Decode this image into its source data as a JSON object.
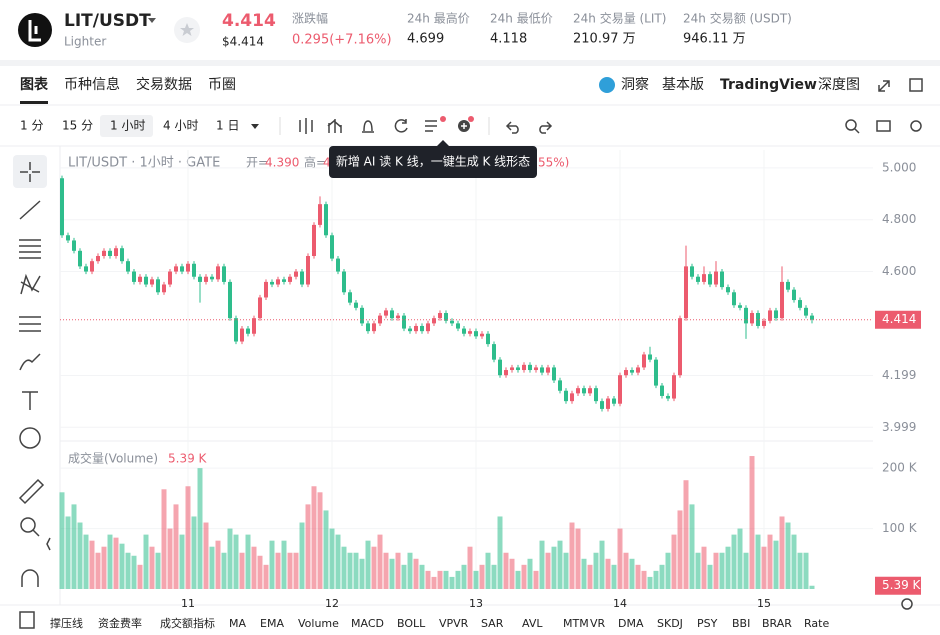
{
  "header": {
    "symbol": "LIT/USDT",
    "name": "Lighter",
    "price": "4.414",
    "price_usd": "$4.414",
    "change_label": "涨跌幅",
    "change": "0.295(+7.16%)",
    "stats": [
      {
        "label": "24h 最高价",
        "value": "4.699"
      },
      {
        "label": "24h 最低价",
        "value": "4.118"
      },
      {
        "label": "24h 交易量 (LIT)",
        "value": "210.97 万"
      },
      {
        "label": "24h 交易额 (USDT)",
        "value": "946.11 万"
      }
    ]
  },
  "tabs": [
    "图表",
    "币种信息",
    "交易数据",
    "币圈"
  ],
  "tabs_right": [
    "洞察",
    "基本版",
    "TradingView",
    "深度图"
  ],
  "intervals": [
    "1 分",
    "15 分",
    "1 小时",
    "4 小时",
    "1 日"
  ],
  "indicators": [
    "撑压线",
    "资金费率",
    "成交额指标",
    "MA",
    "EMA",
    "Volume",
    "MACD",
    "BOLL",
    "VPVR",
    "SAR",
    "AVL",
    "MTM",
    "VR",
    "DMA",
    "SKDJ",
    "PSY",
    "BBI",
    "BRAR",
    "Rate"
  ],
  "chart_data": {
    "type": "candlestick",
    "legend": {
      "symbol": "LIT/USDT · 1小时 · GATE",
      "open_label": "开=",
      "open": "4.390",
      "high_label": "高=",
      "high": "4",
      "tail": "55%)"
    },
    "tooltip": "新增 AI 读 K 线，一键生成 K 线形态",
    "up_color": "#ec5b6e",
    "down_color": "#2ebd8c",
    "ylim": [
      3.95,
      5.069
    ],
    "yticks": [
      {
        "value": 5.0,
        "label": "5.000"
      },
      {
        "value": 4.8,
        "label": "4.800"
      },
      {
        "value": 4.6,
        "label": "4.600"
      },
      {
        "value": 4.199,
        "label": "4.199"
      },
      {
        "value": 3.999,
        "label": "3.999"
      }
    ],
    "last_price": {
      "value": 4.414,
      "label": "4.414"
    },
    "x_ticks": [
      {
        "index": 21,
        "label": "11"
      },
      {
        "index": 45,
        "label": "12"
      },
      {
        "index": 69,
        "label": "13"
      },
      {
        "index": 93,
        "label": "14"
      },
      {
        "index": 117,
        "label": "15"
      }
    ],
    "candles": [
      [
        4.96,
        4.97,
        4.73,
        4.74
      ],
      [
        4.74,
        4.75,
        4.71,
        4.72
      ],
      [
        4.72,
        4.73,
        4.67,
        4.68
      ],
      [
        4.68,
        4.69,
        4.61,
        4.62
      ],
      [
        4.62,
        4.63,
        4.59,
        4.6
      ],
      [
        4.6,
        4.65,
        4.59,
        4.64
      ],
      [
        4.64,
        4.67,
        4.63,
        4.66
      ],
      [
        4.66,
        4.69,
        4.65,
        4.68
      ],
      [
        4.68,
        4.69,
        4.65,
        4.66
      ],
      [
        4.66,
        4.7,
        4.65,
        4.69
      ],
      [
        4.69,
        4.7,
        4.63,
        4.64
      ],
      [
        4.64,
        4.65,
        4.59,
        4.6
      ],
      [
        4.6,
        4.61,
        4.55,
        4.56
      ],
      [
        4.56,
        4.59,
        4.55,
        4.58
      ],
      [
        4.58,
        4.59,
        4.54,
        4.55
      ],
      [
        4.55,
        4.58,
        4.54,
        4.57
      ],
      [
        4.57,
        4.58,
        4.51,
        4.52
      ],
      [
        4.52,
        4.56,
        4.51,
        4.55
      ],
      [
        4.55,
        4.61,
        4.54,
        4.6
      ],
      [
        4.6,
        4.63,
        4.59,
        4.62
      ],
      [
        4.62,
        4.63,
        4.59,
        4.6
      ],
      [
        4.6,
        4.64,
        4.59,
        4.63
      ],
      [
        4.63,
        4.64,
        4.57,
        4.58
      ],
      [
        4.58,
        4.59,
        4.48,
        4.56
      ],
      [
        4.56,
        4.59,
        4.55,
        4.58
      ],
      [
        4.58,
        4.59,
        4.56,
        4.57
      ],
      [
        4.57,
        4.63,
        4.56,
        4.62
      ],
      [
        4.62,
        4.63,
        4.55,
        4.56
      ],
      [
        4.56,
        4.57,
        4.41,
        4.42
      ],
      [
        4.42,
        4.43,
        4.32,
        4.33
      ],
      [
        4.33,
        4.39,
        4.32,
        4.38
      ],
      [
        4.38,
        4.39,
        4.35,
        4.36
      ],
      [
        4.36,
        4.43,
        4.35,
        4.42
      ],
      [
        4.42,
        4.51,
        4.41,
        4.5
      ],
      [
        4.5,
        4.57,
        4.49,
        4.56
      ],
      [
        4.56,
        4.57,
        4.54,
        4.55
      ],
      [
        4.55,
        4.58,
        4.54,
        4.57
      ],
      [
        4.57,
        4.58,
        4.55,
        4.56
      ],
      [
        4.56,
        4.59,
        4.55,
        4.58
      ],
      [
        4.58,
        4.61,
        4.57,
        4.6
      ],
      [
        4.6,
        4.61,
        4.54,
        4.55
      ],
      [
        4.55,
        4.67,
        4.54,
        4.66
      ],
      [
        4.66,
        4.79,
        4.65,
        4.78
      ],
      [
        4.78,
        4.89,
        4.77,
        4.86
      ],
      [
        4.86,
        4.87,
        4.73,
        4.74
      ],
      [
        4.74,
        4.75,
        4.64,
        4.65
      ],
      [
        4.65,
        4.66,
        4.59,
        4.6
      ],
      [
        4.6,
        4.61,
        4.51,
        4.52
      ],
      [
        4.52,
        4.53,
        4.47,
        4.48
      ],
      [
        4.48,
        4.49,
        4.45,
        4.46
      ],
      [
        4.46,
        4.47,
        4.39,
        4.4
      ],
      [
        4.4,
        4.41,
        4.36,
        4.37
      ],
      [
        4.37,
        4.41,
        4.36,
        4.4
      ],
      [
        4.4,
        4.44,
        4.39,
        4.43
      ],
      [
        4.43,
        4.46,
        4.42,
        4.45
      ],
      [
        4.45,
        4.46,
        4.41,
        4.42
      ],
      [
        4.42,
        4.44,
        4.41,
        4.43
      ],
      [
        4.43,
        4.44,
        4.37,
        4.38
      ],
      [
        4.38,
        4.39,
        4.36,
        4.37
      ],
      [
        4.37,
        4.4,
        4.36,
        4.39
      ],
      [
        4.39,
        4.4,
        4.36,
        4.37
      ],
      [
        4.37,
        4.41,
        4.36,
        4.4
      ],
      [
        4.4,
        4.43,
        4.39,
        4.42
      ],
      [
        4.42,
        4.45,
        4.41,
        4.44
      ],
      [
        4.44,
        4.45,
        4.4,
        4.41
      ],
      [
        4.41,
        4.42,
        4.39,
        4.4
      ],
      [
        4.4,
        4.41,
        4.37,
        4.38
      ],
      [
        4.38,
        4.39,
        4.35,
        4.36
      ],
      [
        4.36,
        4.38,
        4.35,
        4.37
      ],
      [
        4.37,
        4.38,
        4.34,
        4.35
      ],
      [
        4.35,
        4.37,
        4.34,
        4.36
      ],
      [
        4.36,
        4.37,
        4.31,
        4.32
      ],
      [
        4.32,
        4.33,
        4.25,
        4.26
      ],
      [
        4.26,
        4.27,
        4.19,
        4.2
      ],
      [
        4.2,
        4.23,
        4.19,
        4.22
      ],
      [
        4.22,
        4.24,
        4.21,
        4.23
      ],
      [
        4.23,
        4.24,
        4.21,
        4.22
      ],
      [
        4.22,
        4.25,
        4.21,
        4.24
      ],
      [
        4.24,
        4.25,
        4.21,
        4.22
      ],
      [
        4.22,
        4.24,
        4.21,
        4.23
      ],
      [
        4.23,
        4.24,
        4.2,
        4.21
      ],
      [
        4.21,
        4.24,
        4.2,
        4.23
      ],
      [
        4.23,
        4.24,
        4.17,
        4.18
      ],
      [
        4.18,
        4.19,
        4.13,
        4.14
      ],
      [
        4.14,
        4.15,
        4.09,
        4.1
      ],
      [
        4.1,
        4.14,
        4.09,
        4.13
      ],
      [
        4.13,
        4.16,
        4.12,
        4.15
      ],
      [
        4.15,
        4.16,
        4.12,
        4.13
      ],
      [
        4.13,
        4.16,
        4.12,
        4.15
      ],
      [
        4.15,
        4.16,
        4.09,
        4.1
      ],
      [
        4.1,
        4.11,
        4.06,
        4.07
      ],
      [
        4.07,
        4.12,
        4.06,
        4.11
      ],
      [
        4.11,
        4.12,
        4.08,
        4.09
      ],
      [
        4.09,
        4.21,
        4.08,
        4.2
      ],
      [
        4.2,
        4.23,
        4.19,
        4.22
      ],
      [
        4.22,
        4.23,
        4.2,
        4.21
      ],
      [
        4.21,
        4.24,
        4.2,
        4.23
      ],
      [
        4.23,
        4.29,
        4.22,
        4.28
      ],
      [
        4.28,
        4.31,
        4.25,
        4.26
      ],
      [
        4.26,
        4.27,
        4.15,
        4.16
      ],
      [
        4.16,
        4.17,
        4.11,
        4.12
      ],
      [
        4.12,
        4.13,
        4.1,
        4.11
      ],
      [
        4.11,
        4.21,
        4.1,
        4.2
      ],
      [
        4.2,
        4.43,
        4.19,
        4.42
      ],
      [
        4.42,
        4.7,
        4.41,
        4.62
      ],
      [
        4.62,
        4.63,
        4.57,
        4.58
      ],
      [
        4.58,
        4.59,
        4.55,
        4.56
      ],
      [
        4.56,
        4.62,
        4.55,
        4.59
      ],
      [
        4.59,
        4.6,
        4.54,
        4.55
      ],
      [
        4.55,
        4.64,
        4.54,
        4.6
      ],
      [
        4.6,
        4.61,
        4.53,
        4.54
      ],
      [
        4.54,
        4.55,
        4.51,
        4.52
      ],
      [
        4.52,
        4.53,
        4.46,
        4.47
      ],
      [
        4.47,
        4.48,
        4.45,
        4.46
      ],
      [
        4.46,
        4.47,
        4.34,
        4.4
      ],
      [
        4.4,
        4.45,
        4.39,
        4.44
      ],
      [
        4.44,
        4.45,
        4.38,
        4.39
      ],
      [
        4.39,
        4.42,
        4.38,
        4.41
      ],
      [
        4.41,
        4.46,
        4.4,
        4.45
      ],
      [
        4.45,
        4.46,
        4.41,
        4.42
      ],
      [
        4.42,
        4.62,
        4.41,
        4.56
      ],
      [
        4.56,
        4.57,
        4.52,
        4.53
      ],
      [
        4.53,
        4.54,
        4.48,
        4.49
      ],
      [
        4.49,
        4.5,
        4.45,
        4.46
      ],
      [
        4.46,
        4.47,
        4.42,
        4.43
      ],
      [
        4.43,
        4.44,
        4.4,
        4.414
      ]
    ],
    "volume": {
      "name": "成交量(Volume)",
      "ylim": [
        0,
        230
      ],
      "yticks": [
        {
          "value": 100,
          "label": "100 K"
        },
        {
          "value": 200,
          "label": "200 K"
        }
      ],
      "last": {
        "value": 5.39,
        "label": "5.39 K"
      },
      "values": [
        160,
        120,
        140,
        110,
        90,
        80,
        60,
        70,
        90,
        85,
        75,
        60,
        55,
        40,
        90,
        70,
        60,
        165,
        100,
        140,
        90,
        170,
        120,
        200,
        110,
        70,
        80,
        60,
        100,
        90,
        60,
        90,
        70,
        55,
        40,
        80,
        60,
        80,
        60,
        60,
        110,
        140,
        170,
        160,
        130,
        100,
        90,
        70,
        60,
        60,
        50,
        80,
        70,
        90,
        60,
        50,
        60,
        40,
        60,
        50,
        40,
        30,
        20,
        30,
        30,
        20,
        30,
        40,
        70,
        30,
        40,
        60,
        40,
        120,
        60,
        50,
        30,
        40,
        50,
        30,
        80,
        60,
        70,
        80,
        60,
        110,
        100,
        50,
        40,
        60,
        80,
        50,
        40,
        100,
        60,
        50,
        40,
        30,
        20,
        30,
        40,
        60,
        90,
        130,
        180,
        140,
        60,
        70,
        40,
        60,
        60,
        70,
        90,
        100,
        60,
        220,
        90,
        70,
        90,
        80,
        120,
        110,
        90,
        60,
        60,
        5.39
      ]
    }
  }
}
